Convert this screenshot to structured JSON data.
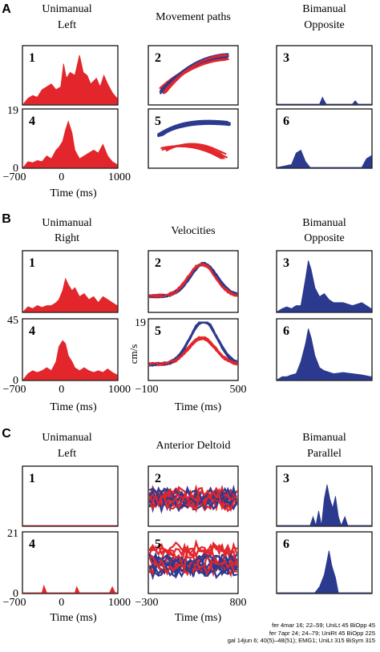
{
  "colors": {
    "red": "#e3262b",
    "blue": "#2b3a8f",
    "frame": "#000000"
  },
  "sections": [
    {
      "label": "A",
      "titles": [
        "Unimanual",
        "Left",
        "Movement paths",
        "Bimanual",
        "Opposite"
      ],
      "panel_numbers": [
        "1",
        "2",
        "3",
        "4",
        "5",
        "6"
      ],
      "y_top_tick": "19",
      "y_bottom_tick": "0",
      "left_x_ticks": [
        "−700",
        "0",
        "1000"
      ],
      "left_x_label": "Time (ms)",
      "mid_x_ticks": [],
      "mid_x_label": "",
      "mid_y_top": "",
      "mid_y_unit": ""
    },
    {
      "label": "B",
      "titles": [
        "Unimanual",
        "Right",
        "Velocities",
        "Bimanual",
        "Opposite"
      ],
      "panel_numbers": [
        "1",
        "2",
        "3",
        "4",
        "5",
        "6"
      ],
      "y_top_tick": "45",
      "y_bottom_tick": "0",
      "left_x_ticks": [
        "−700",
        "0",
        "1000"
      ],
      "left_x_label": "Time (ms)",
      "mid_x_ticks": [
        "−100",
        "500"
      ],
      "mid_x_label": "Time (ms)",
      "mid_y_top": "19",
      "mid_y_unit": "cm/s"
    },
    {
      "label": "C",
      "titles": [
        "Unimanual",
        "Left",
        "Anterior Deltoid",
        "Bimanual",
        "Parallel"
      ],
      "panel_numbers": [
        "1",
        "2",
        "3",
        "4",
        "5",
        "6"
      ],
      "y_top_tick": "21",
      "y_bottom_tick": "0",
      "left_x_ticks": [
        "−700",
        "0",
        "1000"
      ],
      "left_x_label": "Time (ms)",
      "mid_x_ticks": [
        "−300",
        "800"
      ],
      "mid_x_label": "Time (ms)",
      "mid_y_top": "",
      "mid_y_unit": ""
    }
  ],
  "footnote": [
    "fer 4mar 16; 22–59; UniLt 45 BiOpp 45",
    "fer 7apr 24; 24–79; UniRt 45 BiOpp 225",
    "gal 14jun 6; 40(5)–48(51); EMG1; UniLt 315 BiSym 315"
  ],
  "chart_data": [
    {
      "type": "area",
      "section": "A",
      "panels": {
        "1": [
          [
            0,
            0
          ],
          [
            0.05,
            0.1
          ],
          [
            0.1,
            0.15
          ],
          [
            0.15,
            0.12
          ],
          [
            0.2,
            0.25
          ],
          [
            0.25,
            0.3
          ],
          [
            0.3,
            0.35
          ],
          [
            0.35,
            0.25
          ],
          [
            0.4,
            0.3
          ],
          [
            0.43,
            0.7
          ],
          [
            0.46,
            0.45
          ],
          [
            0.5,
            0.55
          ],
          [
            0.55,
            0.5
          ],
          [
            0.6,
            0.85
          ],
          [
            0.64,
            0.55
          ],
          [
            0.68,
            0.5
          ],
          [
            0.72,
            0.35
          ],
          [
            0.78,
            0.45
          ],
          [
            0.82,
            0.3
          ],
          [
            0.86,
            0.5
          ],
          [
            0.9,
            0.35
          ],
          [
            0.95,
            0.2
          ],
          [
            1,
            0.1
          ]
        ],
        "3": [
          [
            0,
            0
          ],
          [
            0.45,
            0
          ],
          [
            0.48,
            0.12
          ],
          [
            0.52,
            0
          ],
          [
            0.8,
            0
          ],
          [
            0.83,
            0.06
          ],
          [
            0.86,
            0
          ],
          [
            1,
            0
          ]
        ],
        "4": [
          [
            0,
            0
          ],
          [
            0.05,
            0.1
          ],
          [
            0.1,
            0.08
          ],
          [
            0.15,
            0.12
          ],
          [
            0.2,
            0.1
          ],
          [
            0.25,
            0.2
          ],
          [
            0.3,
            0.15
          ],
          [
            0.35,
            0.3
          ],
          [
            0.38,
            0.35
          ],
          [
            0.42,
            0.45
          ],
          [
            0.45,
            0.65
          ],
          [
            0.48,
            0.8
          ],
          [
            0.52,
            0.6
          ],
          [
            0.55,
            0.3
          ],
          [
            0.6,
            0.15
          ],
          [
            0.65,
            0.2
          ],
          [
            0.7,
            0.25
          ],
          [
            0.75,
            0.3
          ],
          [
            0.8,
            0.25
          ],
          [
            0.85,
            0.4
          ],
          [
            0.9,
            0.2
          ],
          [
            0.95,
            0.1
          ],
          [
            1,
            0.05
          ]
        ],
        "6": [
          [
            0,
            0
          ],
          [
            0.15,
            0.05
          ],
          [
            0.2,
            0.25
          ],
          [
            0.25,
            0.3
          ],
          [
            0.3,
            0.1
          ],
          [
            0.35,
            0
          ],
          [
            0.9,
            0
          ],
          [
            0.95,
            0.15
          ],
          [
            1,
            0.2
          ]
        ]
      },
      "x_range": [
        -700,
        1000
      ],
      "y_range": [
        0,
        19
      ],
      "xlabel": "Time (ms)"
    },
    {
      "type": "area",
      "section": "B",
      "panels": {
        "1": [
          [
            0,
            0
          ],
          [
            0.05,
            0.08
          ],
          [
            0.1,
            0.05
          ],
          [
            0.15,
            0.1
          ],
          [
            0.2,
            0.07
          ],
          [
            0.25,
            0.1
          ],
          [
            0.3,
            0.1
          ],
          [
            0.35,
            0.15
          ],
          [
            0.38,
            0.2
          ],
          [
            0.42,
            0.35
          ],
          [
            0.45,
            0.55
          ],
          [
            0.48,
            0.45
          ],
          [
            0.52,
            0.35
          ],
          [
            0.55,
            0.4
          ],
          [
            0.6,
            0.25
          ],
          [
            0.65,
            0.3
          ],
          [
            0.7,
            0.2
          ],
          [
            0.75,
            0.25
          ],
          [
            0.8,
            0.15
          ],
          [
            0.85,
            0.25
          ],
          [
            0.9,
            0.2
          ],
          [
            0.95,
            0.15
          ],
          [
            1,
            0.1
          ]
        ],
        "3": [
          [
            0,
            0
          ],
          [
            0.05,
            0.05
          ],
          [
            0.1,
            0.08
          ],
          [
            0.15,
            0.05
          ],
          [
            0.2,
            0.1
          ],
          [
            0.25,
            0.1
          ],
          [
            0.3,
            0.55
          ],
          [
            0.33,
            0.85
          ],
          [
            0.36,
            0.7
          ],
          [
            0.4,
            0.4
          ],
          [
            0.45,
            0.25
          ],
          [
            0.5,
            0.3
          ],
          [
            0.55,
            0.2
          ],
          [
            0.6,
            0.15
          ],
          [
            0.7,
            0.15
          ],
          [
            0.8,
            0.1
          ],
          [
            0.9,
            0.15
          ],
          [
            1,
            0.05
          ]
        ],
        "4": [
          [
            0,
            0
          ],
          [
            0.05,
            0.1
          ],
          [
            0.1,
            0.15
          ],
          [
            0.15,
            0.12
          ],
          [
            0.2,
            0.15
          ],
          [
            0.25,
            0.2
          ],
          [
            0.3,
            0.15
          ],
          [
            0.35,
            0.3
          ],
          [
            0.38,
            0.55
          ],
          [
            0.42,
            0.65
          ],
          [
            0.45,
            0.6
          ],
          [
            0.48,
            0.4
          ],
          [
            0.52,
            0.3
          ],
          [
            0.55,
            0.2
          ],
          [
            0.6,
            0.15
          ],
          [
            0.65,
            0.2
          ],
          [
            0.7,
            0.15
          ],
          [
            0.75,
            0.12
          ],
          [
            0.8,
            0.15
          ],
          [
            0.85,
            0.12
          ],
          [
            0.9,
            0.18
          ],
          [
            0.95,
            0.12
          ],
          [
            1,
            0.08
          ]
        ],
        "6": [
          [
            0,
            0
          ],
          [
            0.05,
            0.05
          ],
          [
            0.1,
            0.05
          ],
          [
            0.15,
            0.08
          ],
          [
            0.2,
            0.1
          ],
          [
            0.25,
            0.3
          ],
          [
            0.3,
            0.6
          ],
          [
            0.33,
            0.85
          ],
          [
            0.36,
            0.7
          ],
          [
            0.4,
            0.4
          ],
          [
            0.45,
            0.2
          ],
          [
            0.5,
            0.15
          ],
          [
            0.6,
            0.1
          ],
          [
            0.7,
            0.12
          ],
          [
            0.8,
            0.1
          ],
          [
            0.9,
            0.08
          ],
          [
            1,
            0.05
          ]
        ]
      },
      "x_range": [
        -700,
        1000
      ],
      "y_range": [
        0,
        45
      ],
      "xlabel": "Time (ms)",
      "velocity_x_range": [
        -100,
        500
      ],
      "velocity_y_max": 19,
      "velocity_unit": "cm/s"
    },
    {
      "type": "area",
      "section": "C",
      "panels": {
        "1": [
          [
            0,
            0
          ],
          [
            1,
            0
          ]
        ],
        "3": [
          [
            0,
            0
          ],
          [
            0.35,
            0
          ],
          [
            0.38,
            0.15
          ],
          [
            0.41,
            0
          ],
          [
            0.44,
            0.25
          ],
          [
            0.47,
            0
          ],
          [
            0.5,
            0.45
          ],
          [
            0.53,
            0.7
          ],
          [
            0.56,
            0.45
          ],
          [
            0.59,
            0.3
          ],
          [
            0.62,
            0.5
          ],
          [
            0.65,
            0.15
          ],
          [
            0.68,
            0
          ],
          [
            0.72,
            0.15
          ],
          [
            0.75,
            0
          ],
          [
            1,
            0
          ]
        ],
        "4": [
          [
            0,
            0
          ],
          [
            0.2,
            0
          ],
          [
            0.22,
            0.12
          ],
          [
            0.25,
            0
          ],
          [
            0.55,
            0
          ],
          [
            0.57,
            0.1
          ],
          [
            0.6,
            0
          ],
          [
            0.92,
            0
          ],
          [
            0.95,
            0.1
          ],
          [
            0.98,
            0
          ],
          [
            1,
            0
          ]
        ],
        "6": [
          [
            0,
            0
          ],
          [
            0.4,
            0
          ],
          [
            0.45,
            0.1
          ],
          [
            0.5,
            0.3
          ],
          [
            0.55,
            0.7
          ],
          [
            0.58,
            0.45
          ],
          [
            0.62,
            0.25
          ],
          [
            0.65,
            0
          ],
          [
            1,
            0
          ]
        ]
      },
      "x_range": [
        -700,
        1000
      ],
      "y_range": [
        0,
        21
      ],
      "xlabel": "Time (ms)",
      "emg_x_range": [
        -300,
        800
      ]
    }
  ]
}
